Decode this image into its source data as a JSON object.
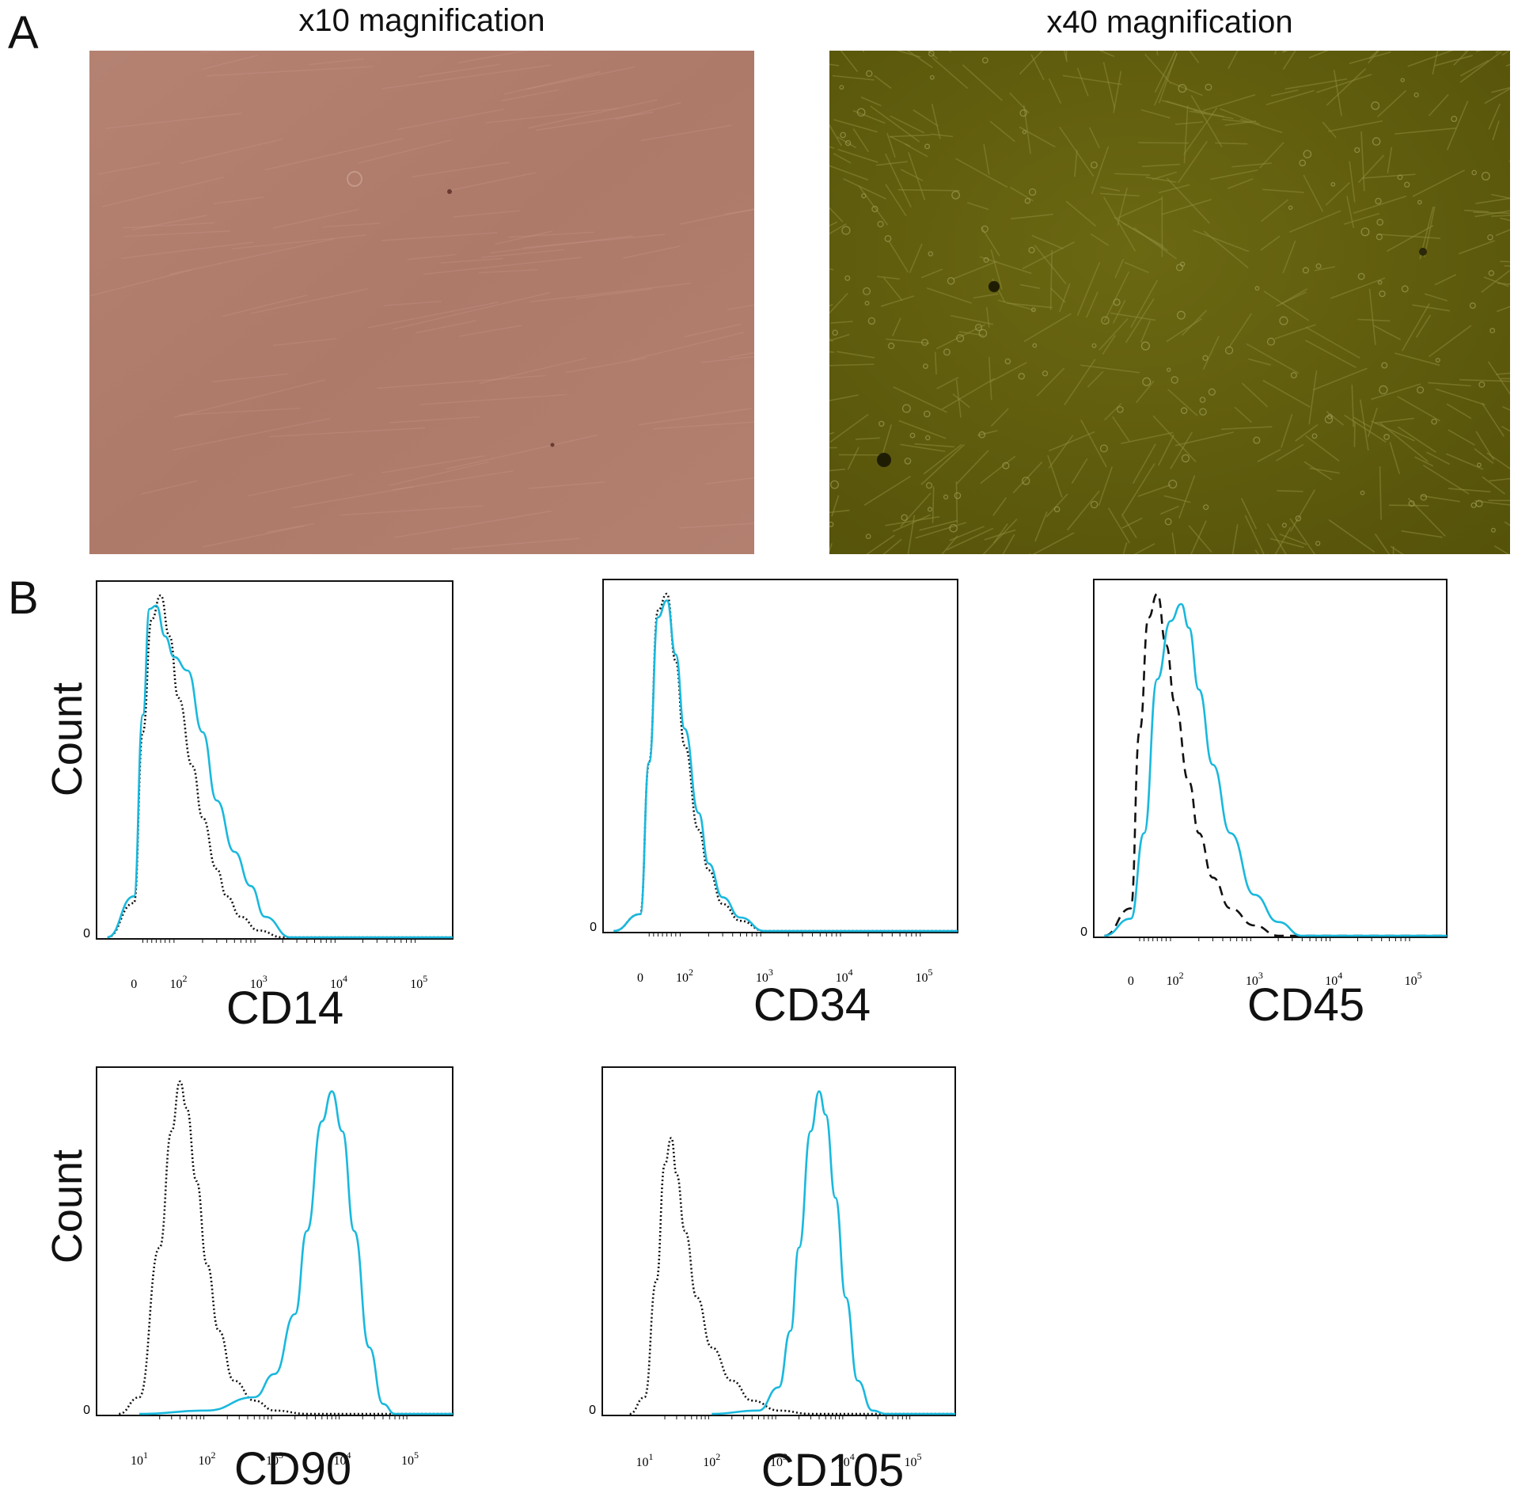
{
  "panel_a": {
    "letter": "A",
    "images": [
      {
        "title": "x10 magnification",
        "color": "#b07c6c"
      },
      {
        "title": "x40 magnification",
        "color": "#5f5c0a"
      }
    ]
  },
  "panel_b": {
    "letter": "B",
    "ylabel": "Count",
    "zero_label": "0",
    "colors": {
      "control": "#111111",
      "marker": "#19b8dd"
    }
  },
  "chart_data": [
    {
      "type": "area",
      "marker_label": "CD14",
      "x_scale": "logicle",
      "x_ticks": [
        "0",
        "10^2",
        "10^3",
        "10^4",
        "10^5"
      ],
      "series": [
        {
          "style": "dotted-black",
          "x": [
            -60,
            0,
            20,
            40,
            60,
            80,
            100,
            150,
            200,
            300,
            400,
            600,
            1000,
            2000
          ],
          "y": [
            0,
            0.1,
            0.6,
            0.93,
            1.0,
            0.88,
            0.7,
            0.5,
            0.35,
            0.2,
            0.12,
            0.06,
            0.02,
            0
          ]
        },
        {
          "style": "solid-cyan",
          "x": [
            -60,
            0,
            20,
            35,
            50,
            70,
            90,
            130,
            200,
            300,
            500,
            800,
            1200,
            2500
          ],
          "y": [
            0,
            0.12,
            0.65,
            0.96,
            0.97,
            0.88,
            0.82,
            0.78,
            0.6,
            0.4,
            0.25,
            0.15,
            0.06,
            0
          ]
        }
      ]
    },
    {
      "type": "area",
      "marker_label": "CD34",
      "x_scale": "logicle",
      "x_ticks": [
        "0",
        "10^2",
        "10^3",
        "10^4",
        "10^5"
      ],
      "series": [
        {
          "style": "dotted-black",
          "x": [
            -60,
            0,
            20,
            40,
            60,
            80,
            100,
            150,
            200,
            300,
            500,
            1000
          ],
          "y": [
            0,
            0.05,
            0.5,
            0.95,
            1.0,
            0.8,
            0.55,
            0.3,
            0.18,
            0.08,
            0.03,
            0
          ]
        },
        {
          "style": "solid-cyan",
          "x": [
            -60,
            0,
            20,
            40,
            60,
            80,
            100,
            150,
            200,
            300,
            500,
            1000
          ],
          "y": [
            0,
            0.05,
            0.5,
            0.93,
            0.98,
            0.82,
            0.6,
            0.35,
            0.2,
            0.1,
            0.04,
            0
          ]
        }
      ]
    },
    {
      "type": "area",
      "marker_label": "CD45",
      "x_scale": "logicle",
      "x_ticks": [
        "0",
        "10^2",
        "10^3",
        "10^4",
        "10^5"
      ],
      "series": [
        {
          "style": "dashed-black",
          "x": [
            -60,
            0,
            20,
            40,
            60,
            80,
            100,
            150,
            200,
            300,
            500,
            1000,
            2000
          ],
          "y": [
            0,
            0.08,
            0.6,
            0.93,
            1.0,
            0.85,
            0.68,
            0.45,
            0.3,
            0.17,
            0.08,
            0.03,
            0
          ]
        },
        {
          "style": "solid-cyan",
          "x": [
            -60,
            0,
            30,
            60,
            90,
            120,
            150,
            200,
            300,
            500,
            1000,
            2000,
            4000
          ],
          "y": [
            0,
            0.05,
            0.3,
            0.75,
            0.92,
            0.97,
            0.9,
            0.72,
            0.5,
            0.3,
            0.12,
            0.04,
            0
          ]
        }
      ]
    },
    {
      "type": "area",
      "marker_label": "CD90",
      "x_scale": "log",
      "x_ticks": [
        "10^1",
        "10^2",
        "10^3",
        "10^4",
        "10^5"
      ],
      "series": [
        {
          "style": "dotted-black",
          "x": [
            5,
            10,
            20,
            30,
            40,
            50,
            70,
            100,
            150,
            250,
            500,
            1000,
            3000,
            20000,
            100000
          ],
          "y": [
            0,
            0.05,
            0.5,
            0.85,
            1.0,
            0.92,
            0.7,
            0.45,
            0.25,
            0.1,
            0.04,
            0.01,
            0,
            0,
            0
          ]
        },
        {
          "style": "solid-cyan",
          "x": [
            10,
            100,
            500,
            1000,
            2000,
            3000,
            5000,
            7000,
            10000,
            15000,
            25000,
            40000,
            60000
          ],
          "y": [
            0,
            0.01,
            0.05,
            0.12,
            0.3,
            0.55,
            0.88,
            0.97,
            0.85,
            0.55,
            0.2,
            0.03,
            0
          ]
        }
      ]
    },
    {
      "type": "area",
      "marker_label": "CD105",
      "x_scale": "log",
      "x_ticks": [
        "10^1",
        "10^2",
        "10^3",
        "10^4",
        "10^5"
      ],
      "series": [
        {
          "style": "dotted-black",
          "x": [
            6,
            10,
            15,
            20,
            25,
            30,
            40,
            60,
            100,
            200,
            400,
            1000,
            3000,
            100000
          ],
          "y": [
            0,
            0.05,
            0.4,
            0.75,
            0.83,
            0.72,
            0.55,
            0.35,
            0.2,
            0.1,
            0.04,
            0.01,
            0,
            0
          ]
        },
        {
          "style": "solid-cyan",
          "x": [
            100,
            500,
            1000,
            1500,
            2000,
            3000,
            4000,
            5000,
            7000,
            10000,
            15000,
            25000,
            40000
          ],
          "y": [
            0,
            0.01,
            0.08,
            0.25,
            0.5,
            0.85,
            0.97,
            0.9,
            0.65,
            0.35,
            0.1,
            0.01,
            0
          ]
        }
      ]
    }
  ]
}
